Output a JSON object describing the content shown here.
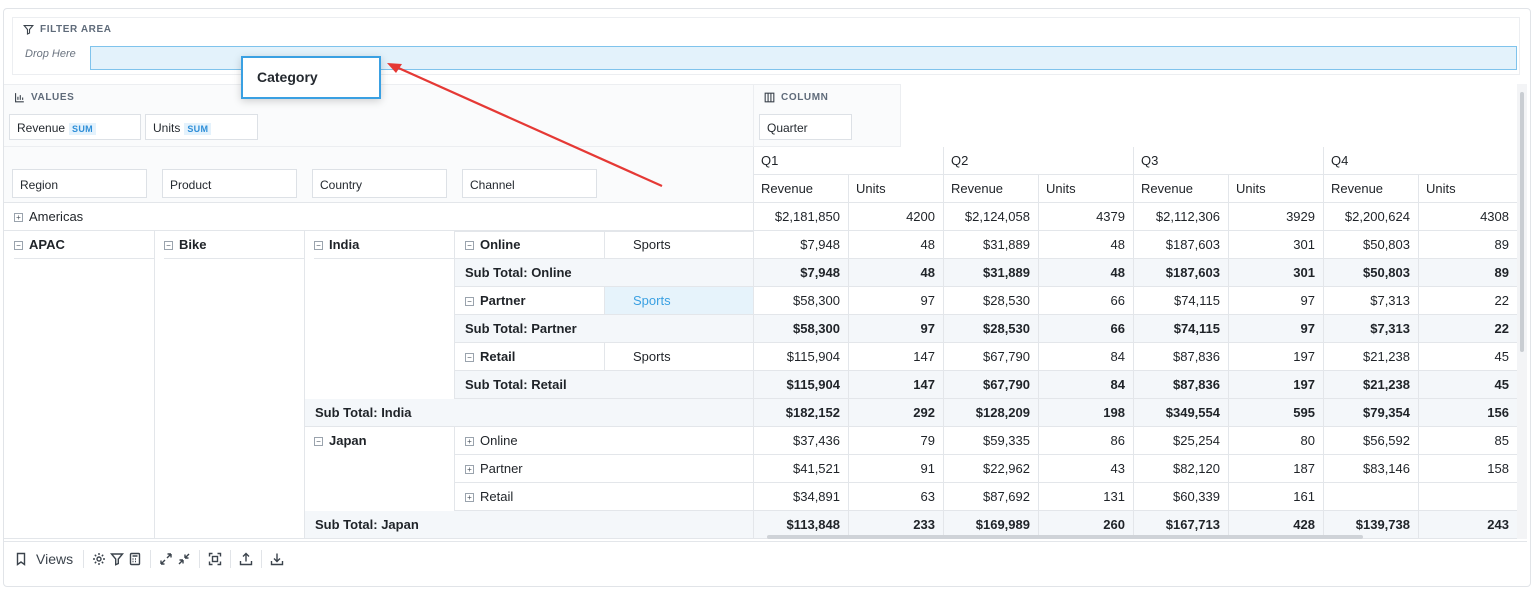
{
  "filter": {
    "title": "FILTER AREA",
    "drop_label": "Drop Here"
  },
  "drag_chip": {
    "label": "Category"
  },
  "values": {
    "title": "VALUES",
    "chips": [
      {
        "label": "Revenue",
        "badge": "SUM"
      },
      {
        "label": "Units",
        "badge": "SUM"
      }
    ]
  },
  "column": {
    "title": "COLUMN",
    "chips": [
      {
        "label": "Quarter"
      }
    ]
  },
  "rows": {
    "chips": [
      "Region",
      "Product",
      "Country",
      "Channel"
    ]
  },
  "quarters": [
    "Q1",
    "Q2",
    "Q3",
    "Q4"
  ],
  "measures": [
    "Revenue",
    "Units"
  ],
  "grid_rows": [
    {
      "labels": [
        "Americas"
      ],
      "values": [
        "$2,181,850",
        "4200",
        "$2,124,058",
        "4379",
        "$2,112,306",
        "3929",
        "$2,200,624",
        "4308"
      ]
    },
    {
      "labels": [
        "APAC",
        "Bike",
        "India",
        "Online",
        "Sports"
      ],
      "values": [
        "$7,948",
        "48",
        "$31,889",
        "48",
        "$187,603",
        "301",
        "$50,803",
        "89"
      ]
    },
    {
      "labels": [
        "Sub Total: Online"
      ],
      "values": [
        "$7,948",
        "48",
        "$31,889",
        "48",
        "$187,603",
        "301",
        "$50,803",
        "89"
      ]
    },
    {
      "labels": [
        "Partner",
        "Sports"
      ],
      "values": [
        "$58,300",
        "97",
        "$28,530",
        "66",
        "$74,115",
        "97",
        "$7,313",
        "22"
      ]
    },
    {
      "labels": [
        "Sub Total: Partner"
      ],
      "values": [
        "$58,300",
        "97",
        "$28,530",
        "66",
        "$74,115",
        "97",
        "$7,313",
        "22"
      ]
    },
    {
      "labels": [
        "Retail",
        "Sports"
      ],
      "values": [
        "$115,904",
        "147",
        "$67,790",
        "84",
        "$87,836",
        "197",
        "$21,238",
        "45"
      ]
    },
    {
      "labels": [
        "Sub Total: Retail"
      ],
      "values": [
        "$115,904",
        "147",
        "$67,790",
        "84",
        "$87,836",
        "197",
        "$21,238",
        "45"
      ]
    },
    {
      "labels": [
        "Sub Total: India"
      ],
      "values": [
        "$182,152",
        "292",
        "$128,209",
        "198",
        "$349,554",
        "595",
        "$79,354",
        "156"
      ]
    },
    {
      "labels": [
        "Japan",
        "Online"
      ],
      "values": [
        "$37,436",
        "79",
        "$59,335",
        "86",
        "$25,254",
        "80",
        "$56,592",
        "85"
      ]
    },
    {
      "labels": [
        "Partner"
      ],
      "values": [
        "$41,521",
        "91",
        "$22,962",
        "43",
        "$82,120",
        "187",
        "$83,146",
        "158"
      ]
    },
    {
      "labels": [
        "Retail"
      ],
      "values": [
        "$34,891",
        "63",
        "$87,692",
        "131",
        "$60,339",
        "161",
        "",
        ""
      ]
    },
    {
      "labels": [
        "Sub Total: Japan"
      ],
      "values": [
        "$113,848",
        "233",
        "$169,989",
        "260",
        "$167,713",
        "428",
        "$139,738",
        "243"
      ]
    }
  ],
  "toolbar": {
    "views_label": "Views"
  },
  "colors": {
    "accent": "#3aa0e2",
    "arrow": "#e53935",
    "drop_zone": "#e3f2fb"
  }
}
